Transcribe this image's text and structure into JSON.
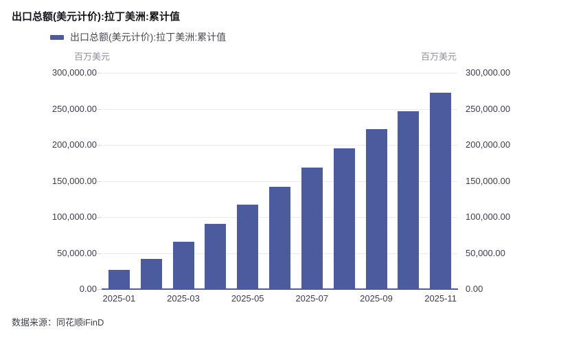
{
  "header": {
    "title": "出口总额(美元计价):拉丁美洲:累计值"
  },
  "legend": {
    "label": "出口总额(美元计价):拉丁美洲:累计值"
  },
  "units": {
    "left": "百万美元",
    "right": "百万美元"
  },
  "source": {
    "text": "数据来源：同花顺iFinD"
  },
  "colors": {
    "bar": "#4c5a9e",
    "grid": "#e9e9f2",
    "tick": "#d4d4e2",
    "axis_text": "#3b3b4e",
    "unit_text": "#8f8f9e",
    "title_text": "#15151d",
    "legend_text": "#4a4a57",
    "source_text": "#3f3f4c"
  },
  "chart_data": {
    "type": "bar",
    "title": "出口总额(美元计价):拉丁美洲:累计值",
    "series_name": "出口总额(美元计价):拉丁美洲:累计值",
    "unit": "百万美元",
    "categories": [
      "2025-01",
      "2025-02",
      "2025-03",
      "2025-04",
      "2025-05",
      "2025-06",
      "2025-07",
      "2025-08",
      "2025-09",
      "2025-10",
      "2025-11"
    ],
    "values": [
      26400,
      42200,
      66000,
      90600,
      116900,
      141600,
      168600,
      195400,
      221900,
      246600,
      272600
    ],
    "ylim": [
      0,
      300000
    ],
    "ytick_interval": 50000,
    "ytick_labels": [
      "0.00",
      "50,000.00",
      "100,000.00",
      "150,000.00",
      "200,000.00",
      "250,000.00",
      "300,000.00"
    ],
    "xtick_labels_shown": [
      "2025-01",
      "2025-03",
      "2025-05",
      "2025-07",
      "2025-09",
      "2025-11"
    ],
    "grid": true,
    "legend_position": "top",
    "source": "数据来源：同花顺iFinD"
  }
}
